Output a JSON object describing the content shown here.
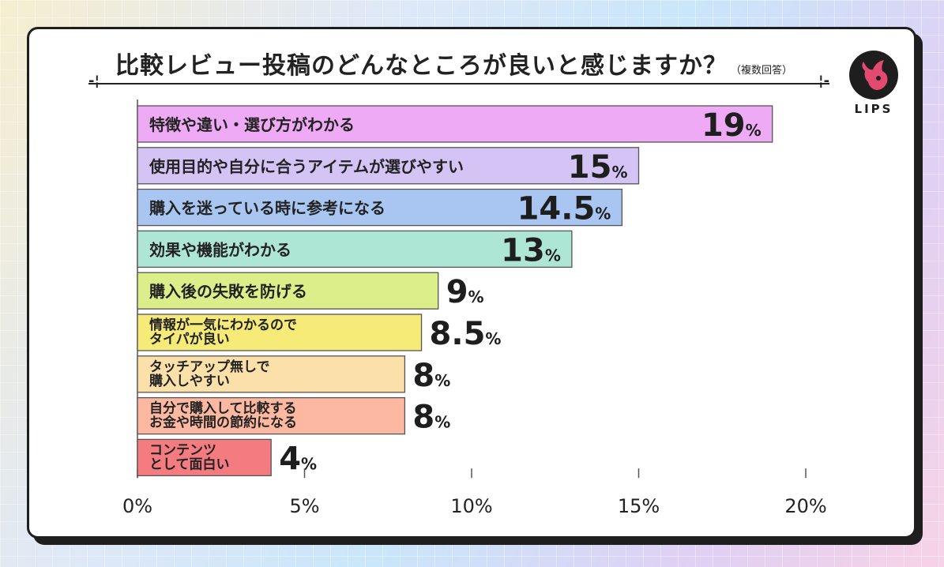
{
  "header": {
    "title": "比較レビュー投稿のどんなところが良いと感じますか？",
    "note": "（複数回答）"
  },
  "brand": {
    "logo_text": "LIPS",
    "accent": "#e34a6f"
  },
  "chart_data": {
    "type": "bar",
    "orientation": "horizontal",
    "categories": [
      [
        "特徴や違い・選び方がわかる"
      ],
      [
        "使用目的や自分に合うアイテムが選びやすい"
      ],
      [
        "購入を迷っている時に参考になる"
      ],
      [
        "効果や機能がわかる"
      ],
      [
        "購入後の失敗を防げる"
      ],
      [
        "情報が一気にわかるので",
        "タイパが良い"
      ],
      [
        "タッチアップ無しで",
        "購入しやすい"
      ],
      [
        "自分で購入して比較する",
        "お金や時間の節約になる"
      ],
      [
        "コンテンツ",
        "として面白い"
      ]
    ],
    "values": [
      19,
      15,
      14.5,
      13,
      9,
      8.5,
      8,
      8,
      4
    ],
    "value_labels": [
      "19",
      "15",
      "14.5",
      "13",
      "9",
      "8.5",
      "8",
      "8",
      "4"
    ],
    "value_unit": "%",
    "colors": [
      "#eeaaf4",
      "#d4c3f5",
      "#a9c6f2",
      "#aee6d6",
      "#dcee8a",
      "#f6ea78",
      "#fce0aa",
      "#fcb8a0",
      "#f47c80"
    ],
    "xlim": [
      0,
      20
    ],
    "xticks": [
      0,
      5,
      10,
      15,
      20
    ],
    "xtick_labels": [
      "0%",
      "5%",
      "10%",
      "15%",
      "20%"
    ],
    "grid": false
  }
}
